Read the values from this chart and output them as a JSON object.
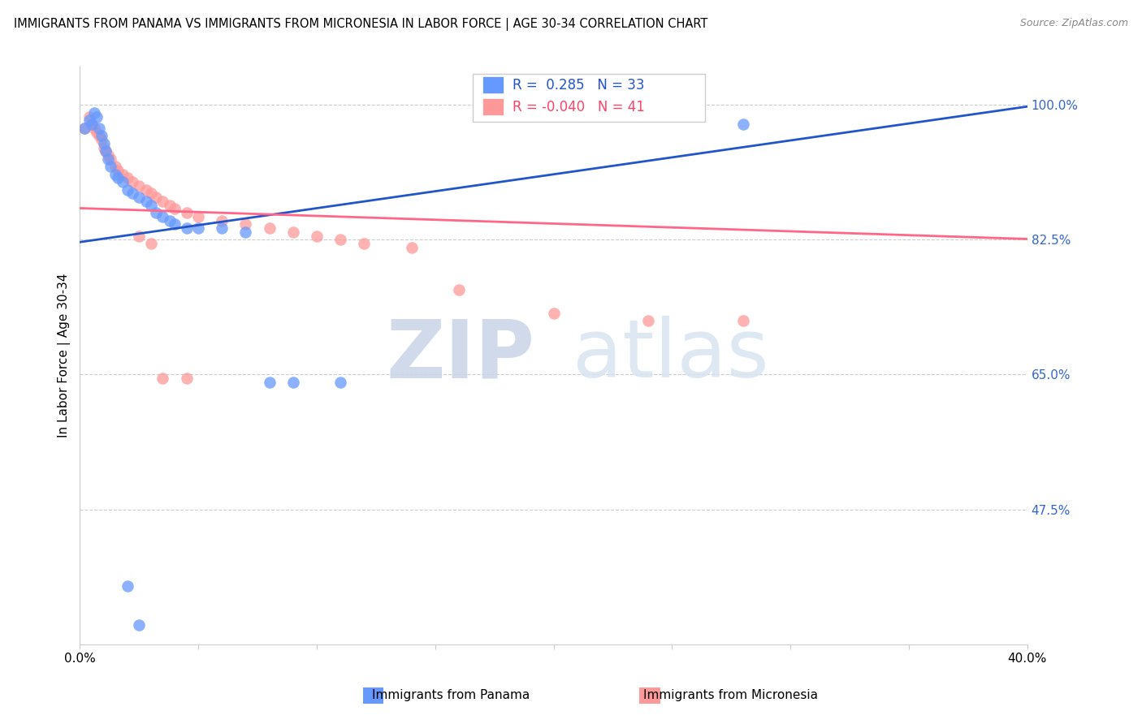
{
  "title": "IMMIGRANTS FROM PANAMA VS IMMIGRANTS FROM MICRONESIA IN LABOR FORCE | AGE 30-34 CORRELATION CHART",
  "source": "Source: ZipAtlas.com",
  "ylabel_label": "In Labor Force | Age 30-34",
  "legend_label_blue": "Immigrants from Panama",
  "legend_label_pink": "Immigrants from Micronesia",
  "r_blue": 0.285,
  "n_blue": 33,
  "r_pink": -0.04,
  "n_pink": 41,
  "blue_color": "#6699FF",
  "pink_color": "#FF9999",
  "line_blue_color": "#2255CC",
  "line_pink_color": "#FF6688",
  "watermark_zip": "ZIP",
  "watermark_atlas": "atlas",
  "xlim": [
    0.0,
    0.4
  ],
  "ylim": [
    0.3,
    1.05
  ],
  "yticks": [
    0.475,
    0.65,
    0.825,
    1.0
  ],
  "xticks": [
    0.0,
    0.05,
    0.1,
    0.15,
    0.2,
    0.25,
    0.3,
    0.35,
    0.4
  ],
  "blue_x": [
    0.002,
    0.004,
    0.005,
    0.006,
    0.007,
    0.008,
    0.009,
    0.01,
    0.011,
    0.012,
    0.013,
    0.015,
    0.016,
    0.018,
    0.02,
    0.022,
    0.025,
    0.028,
    0.03,
    0.032,
    0.035,
    0.038,
    0.04,
    0.045,
    0.05,
    0.06,
    0.07,
    0.08,
    0.09,
    0.11,
    0.02,
    0.025,
    0.28
  ],
  "blue_y": [
    0.97,
    0.98,
    0.975,
    0.99,
    0.985,
    0.97,
    0.96,
    0.95,
    0.94,
    0.93,
    0.92,
    0.91,
    0.905,
    0.9,
    0.89,
    0.885,
    0.88,
    0.875,
    0.87,
    0.86,
    0.855,
    0.85,
    0.845,
    0.84,
    0.84,
    0.84,
    0.835,
    0.64,
    0.64,
    0.64,
    0.375,
    0.325,
    0.975
  ],
  "pink_x": [
    0.002,
    0.004,
    0.005,
    0.006,
    0.007,
    0.008,
    0.009,
    0.01,
    0.011,
    0.012,
    0.013,
    0.015,
    0.016,
    0.018,
    0.02,
    0.022,
    0.025,
    0.028,
    0.03,
    0.032,
    0.035,
    0.038,
    0.04,
    0.045,
    0.05,
    0.06,
    0.07,
    0.08,
    0.09,
    0.1,
    0.11,
    0.12,
    0.14,
    0.16,
    0.2,
    0.24,
    0.28,
    0.025,
    0.03,
    0.035,
    0.045
  ],
  "pink_y": [
    0.97,
    0.985,
    0.975,
    0.97,
    0.965,
    0.96,
    0.955,
    0.945,
    0.94,
    0.935,
    0.93,
    0.92,
    0.915,
    0.91,
    0.905,
    0.9,
    0.895,
    0.89,
    0.885,
    0.88,
    0.875,
    0.87,
    0.865,
    0.86,
    0.855,
    0.85,
    0.845,
    0.84,
    0.835,
    0.83,
    0.825,
    0.82,
    0.815,
    0.76,
    0.73,
    0.72,
    0.72,
    0.83,
    0.82,
    0.645,
    0.645
  ],
  "blue_line_x0": 0.0,
  "blue_line_x1": 0.4,
  "blue_line_y0": 0.822,
  "blue_line_y1": 0.998,
  "pink_line_x0": 0.0,
  "pink_line_x1": 0.4,
  "pink_line_y0": 0.866,
  "pink_line_y1": 0.826
}
